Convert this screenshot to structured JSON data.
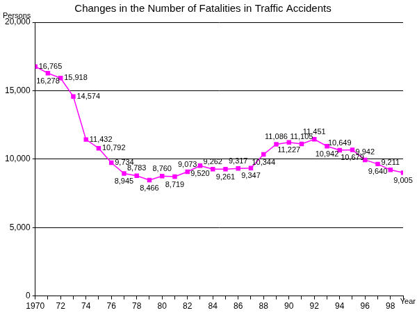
{
  "chart_data": {
    "type": "line",
    "title": "Changes in the Number of Fatalities in Traffic Accidents",
    "y_label": "Persons",
    "x_label": "Year",
    "categories": [
      "1970",
      null,
      "72",
      null,
      "74",
      null,
      "76",
      null,
      "78",
      null,
      "80",
      null,
      "82",
      null,
      "84",
      null,
      "86",
      null,
      "88",
      null,
      "90",
      null,
      "92",
      null,
      "94",
      null,
      "96",
      null,
      "98",
      null
    ],
    "values": [
      16765,
      16278,
      15918,
      14574,
      11432,
      10792,
      9734,
      8945,
      8783,
      8466,
      8760,
      8719,
      9073,
      9520,
      9262,
      9261,
      9317,
      9347,
      10344,
      11086,
      11227,
      11105,
      11451,
      10942,
      10649,
      10679,
      9942,
      9640,
      9211,
      9005
    ],
    "value_labels": [
      "16,765",
      "16,278",
      "15,918",
      "14,574",
      "11,432",
      "10,792",
      "9,734",
      "8,945",
      "8,783",
      "8,466",
      "8,760",
      "8,719",
      "9,073",
      "9,520",
      "9,262",
      "9,261",
      "9,317",
      "9,347",
      "10,344",
      "11,086",
      "11,227",
      "11,105",
      "11,451",
      "10,942",
      "10,649",
      "10,679",
      "9,942",
      "9,640",
      "9,211",
      "9,005"
    ],
    "color": "#ff00ff",
    "marker": "square",
    "ylim": [
      0,
      20000
    ],
    "yticks": [
      0,
      {
        "value": 5000,
        "label": "5,000"
      },
      {
        "value": 10000,
        "label": "10,000"
      },
      {
        "value": 15000,
        "label": "15,000"
      },
      {
        "value": 20000,
        "label": "20,000"
      }
    ],
    "grid": true,
    "data_labels": true
  }
}
